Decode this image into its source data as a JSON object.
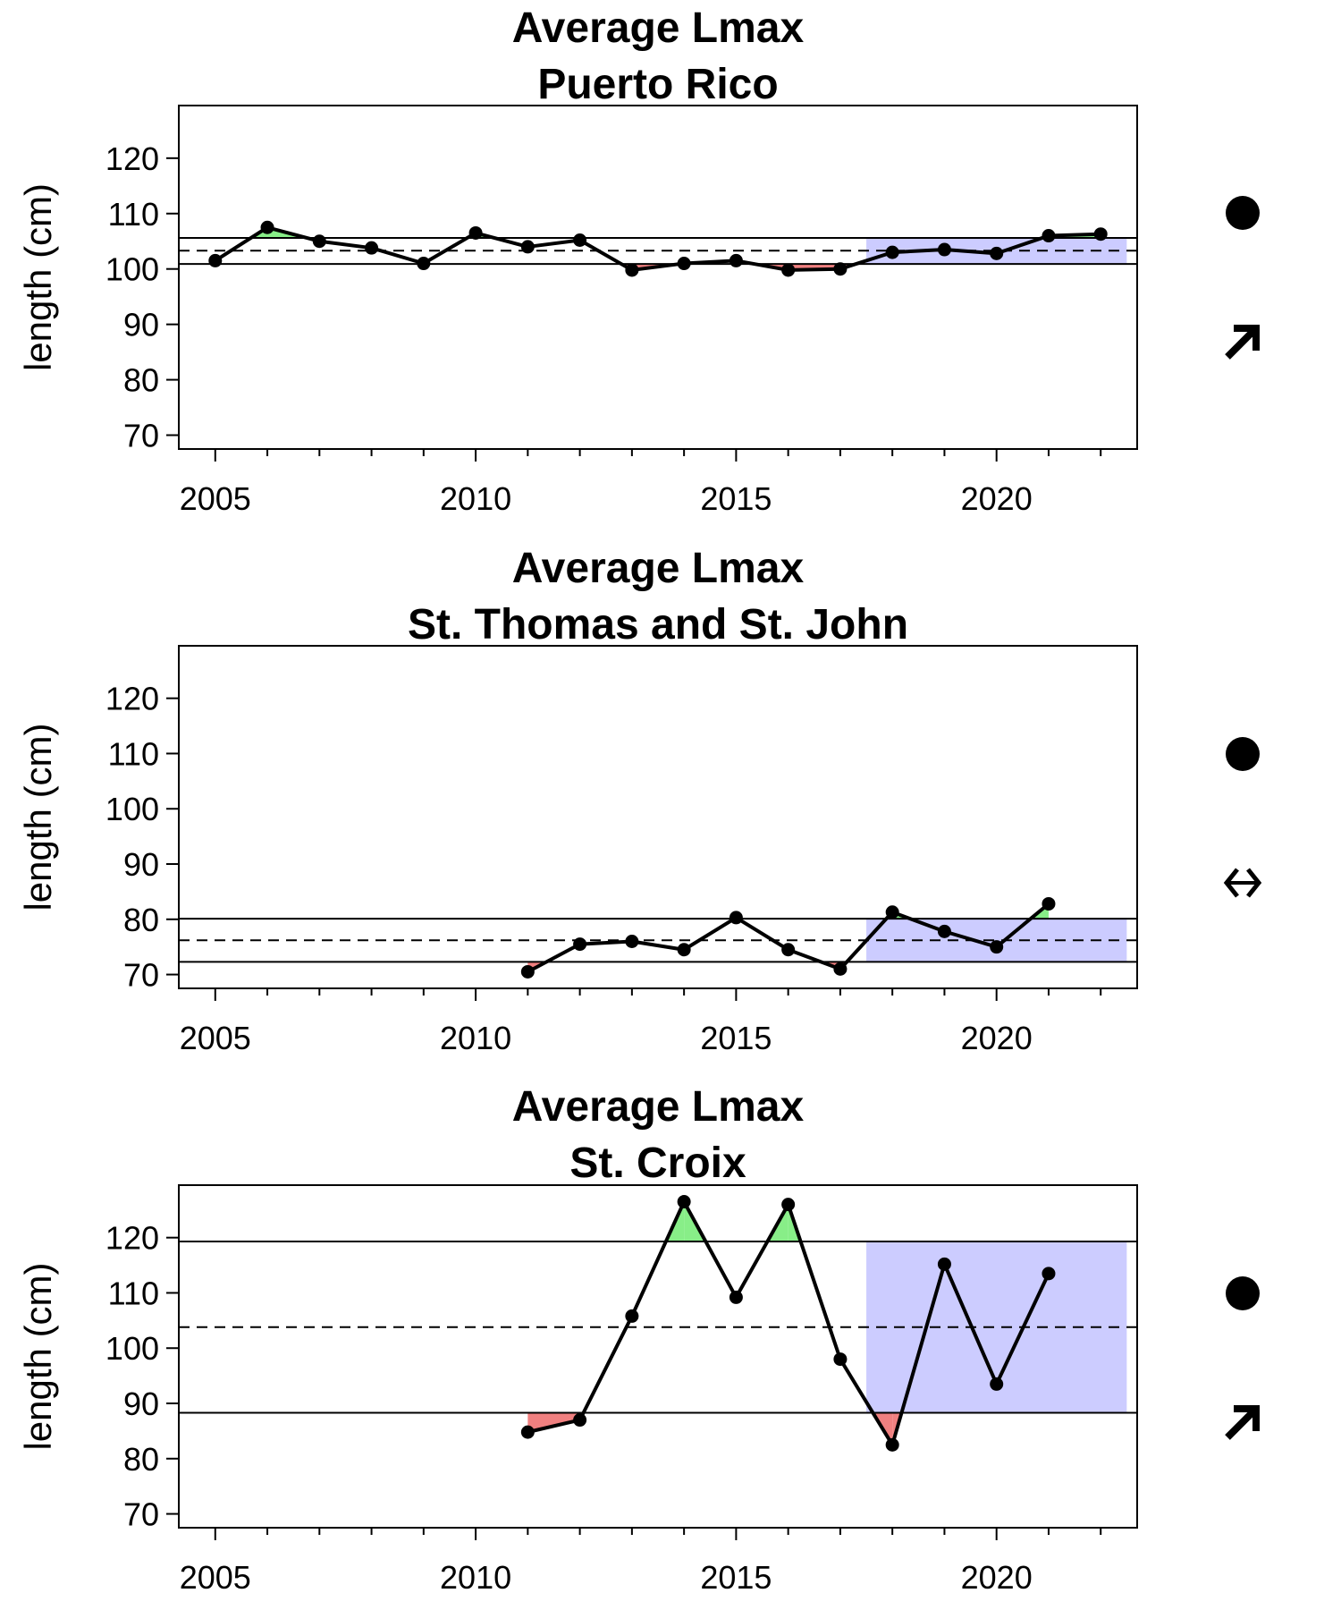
{
  "chart_data": [
    {
      "type": "line",
      "title": "Average Lmax",
      "subtitle": "Puerto Rico",
      "ylabel": "length (cm)",
      "xlabel": "",
      "xlim": [
        2004.3,
        2022.7
      ],
      "ylim": [
        67.5,
        129.5
      ],
      "xticks": [
        2005,
        2010,
        2015,
        2020
      ],
      "yticks": [
        70,
        80,
        90,
        100,
        110,
        120
      ],
      "x": [
        2005,
        2006,
        2007,
        2008,
        2009,
        2010,
        2011,
        2012,
        2013,
        2014,
        2015,
        2016,
        2017,
        2018,
        2019,
        2020,
        2021,
        2022
      ],
      "values": [
        101.5,
        107.5,
        105,
        103.8,
        101,
        106.5,
        104,
        105.2,
        99.8,
        101,
        101.5,
        99.8,
        100,
        103,
        103.5,
        102.8,
        106,
        106.3
      ],
      "mean": 103.3,
      "upper": 105.6,
      "lower": 100.9,
      "recent_window": [
        2017.5,
        2022.5
      ],
      "status_symbol": "filled-circle",
      "trend_symbol": "arrow-up-right-icon",
      "colors": {
        "above": "#88ee88",
        "below": "#f08080",
        "recent": "#ccccff"
      }
    },
    {
      "type": "line",
      "title": "Average Lmax",
      "subtitle": "St. Thomas and St. John",
      "ylabel": "length (cm)",
      "xlabel": "",
      "xlim": [
        2004.3,
        2022.7
      ],
      "ylim": [
        67.5,
        129.5
      ],
      "xticks": [
        2005,
        2010,
        2015,
        2020
      ],
      "yticks": [
        70,
        80,
        90,
        100,
        110,
        120
      ],
      "x": [
        2011,
        2012,
        2013,
        2014,
        2015,
        2016,
        2017,
        2018,
        2019,
        2020,
        2021
      ],
      "values": [
        70.5,
        75.5,
        76,
        74.5,
        80.3,
        74.5,
        71,
        81.3,
        77.8,
        75,
        82.8
      ],
      "mean": 76.2,
      "upper": 80.1,
      "lower": 72.3,
      "recent_window": [
        2017.5,
        2022.5
      ],
      "status_symbol": "filled-circle",
      "trend_symbol": "left-right-arrow-icon",
      "colors": {
        "above": "#88ee88",
        "below": "#f08080",
        "recent": "#ccccff"
      }
    },
    {
      "type": "line",
      "title": "Average Lmax",
      "subtitle": "St. Croix",
      "ylabel": "length (cm)",
      "xlabel": "",
      "xlim": [
        2004.3,
        2022.7
      ],
      "ylim": [
        67.5,
        129.5
      ],
      "xticks": [
        2005,
        2010,
        2015,
        2020
      ],
      "yticks": [
        70,
        80,
        90,
        100,
        110,
        120
      ],
      "x": [
        2011,
        2012,
        2013,
        2014,
        2015,
        2016,
        2017,
        2018,
        2019,
        2020,
        2021
      ],
      "values": [
        84.8,
        87,
        105.8,
        126.5,
        109.2,
        126,
        98,
        82.5,
        115.2,
        93.5,
        113.5
      ],
      "mean": 103.8,
      "upper": 119.3,
      "lower": 88.3,
      "recent_window": [
        2017.5,
        2022.5
      ],
      "status_symbol": "filled-circle",
      "trend_symbol": "arrow-up-right-icon",
      "colors": {
        "above": "#88ee88",
        "below": "#f08080",
        "recent": "#ccccff"
      }
    }
  ]
}
